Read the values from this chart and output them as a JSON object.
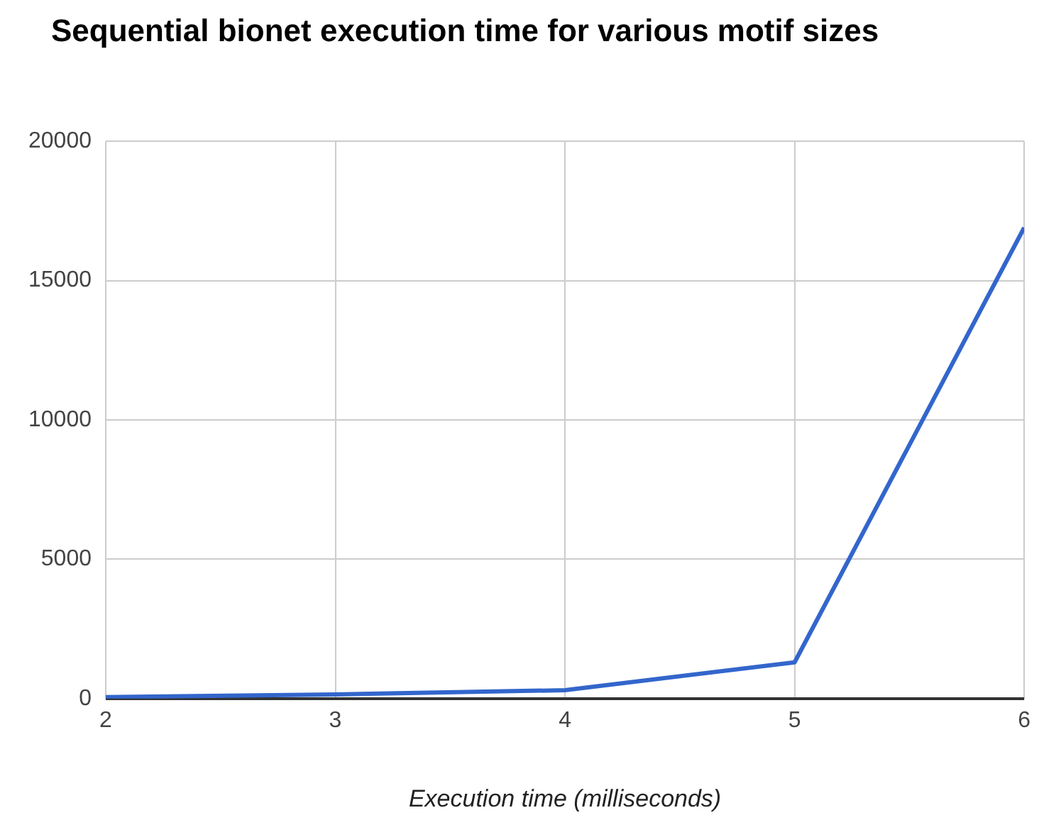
{
  "chart_data": {
    "type": "line",
    "title": "Sequential bionet execution time for various motif sizes",
    "xlabel": "Execution time (milliseconds)",
    "x": [
      2,
      3,
      4,
      5,
      6
    ],
    "series": [
      {
        "color": "#3366cc",
        "values": [
          50,
          150,
          300,
          1300,
          16900
        ]
      }
    ],
    "xlim": [
      2,
      6
    ],
    "xticks": [
      2,
      3,
      4,
      5,
      6
    ],
    "ylim": [
      0,
      20000
    ],
    "yticks": [
      0,
      5000,
      10000,
      15000,
      20000
    ],
    "grid": true,
    "legend": false,
    "marker": "none",
    "line_style": "solid"
  }
}
